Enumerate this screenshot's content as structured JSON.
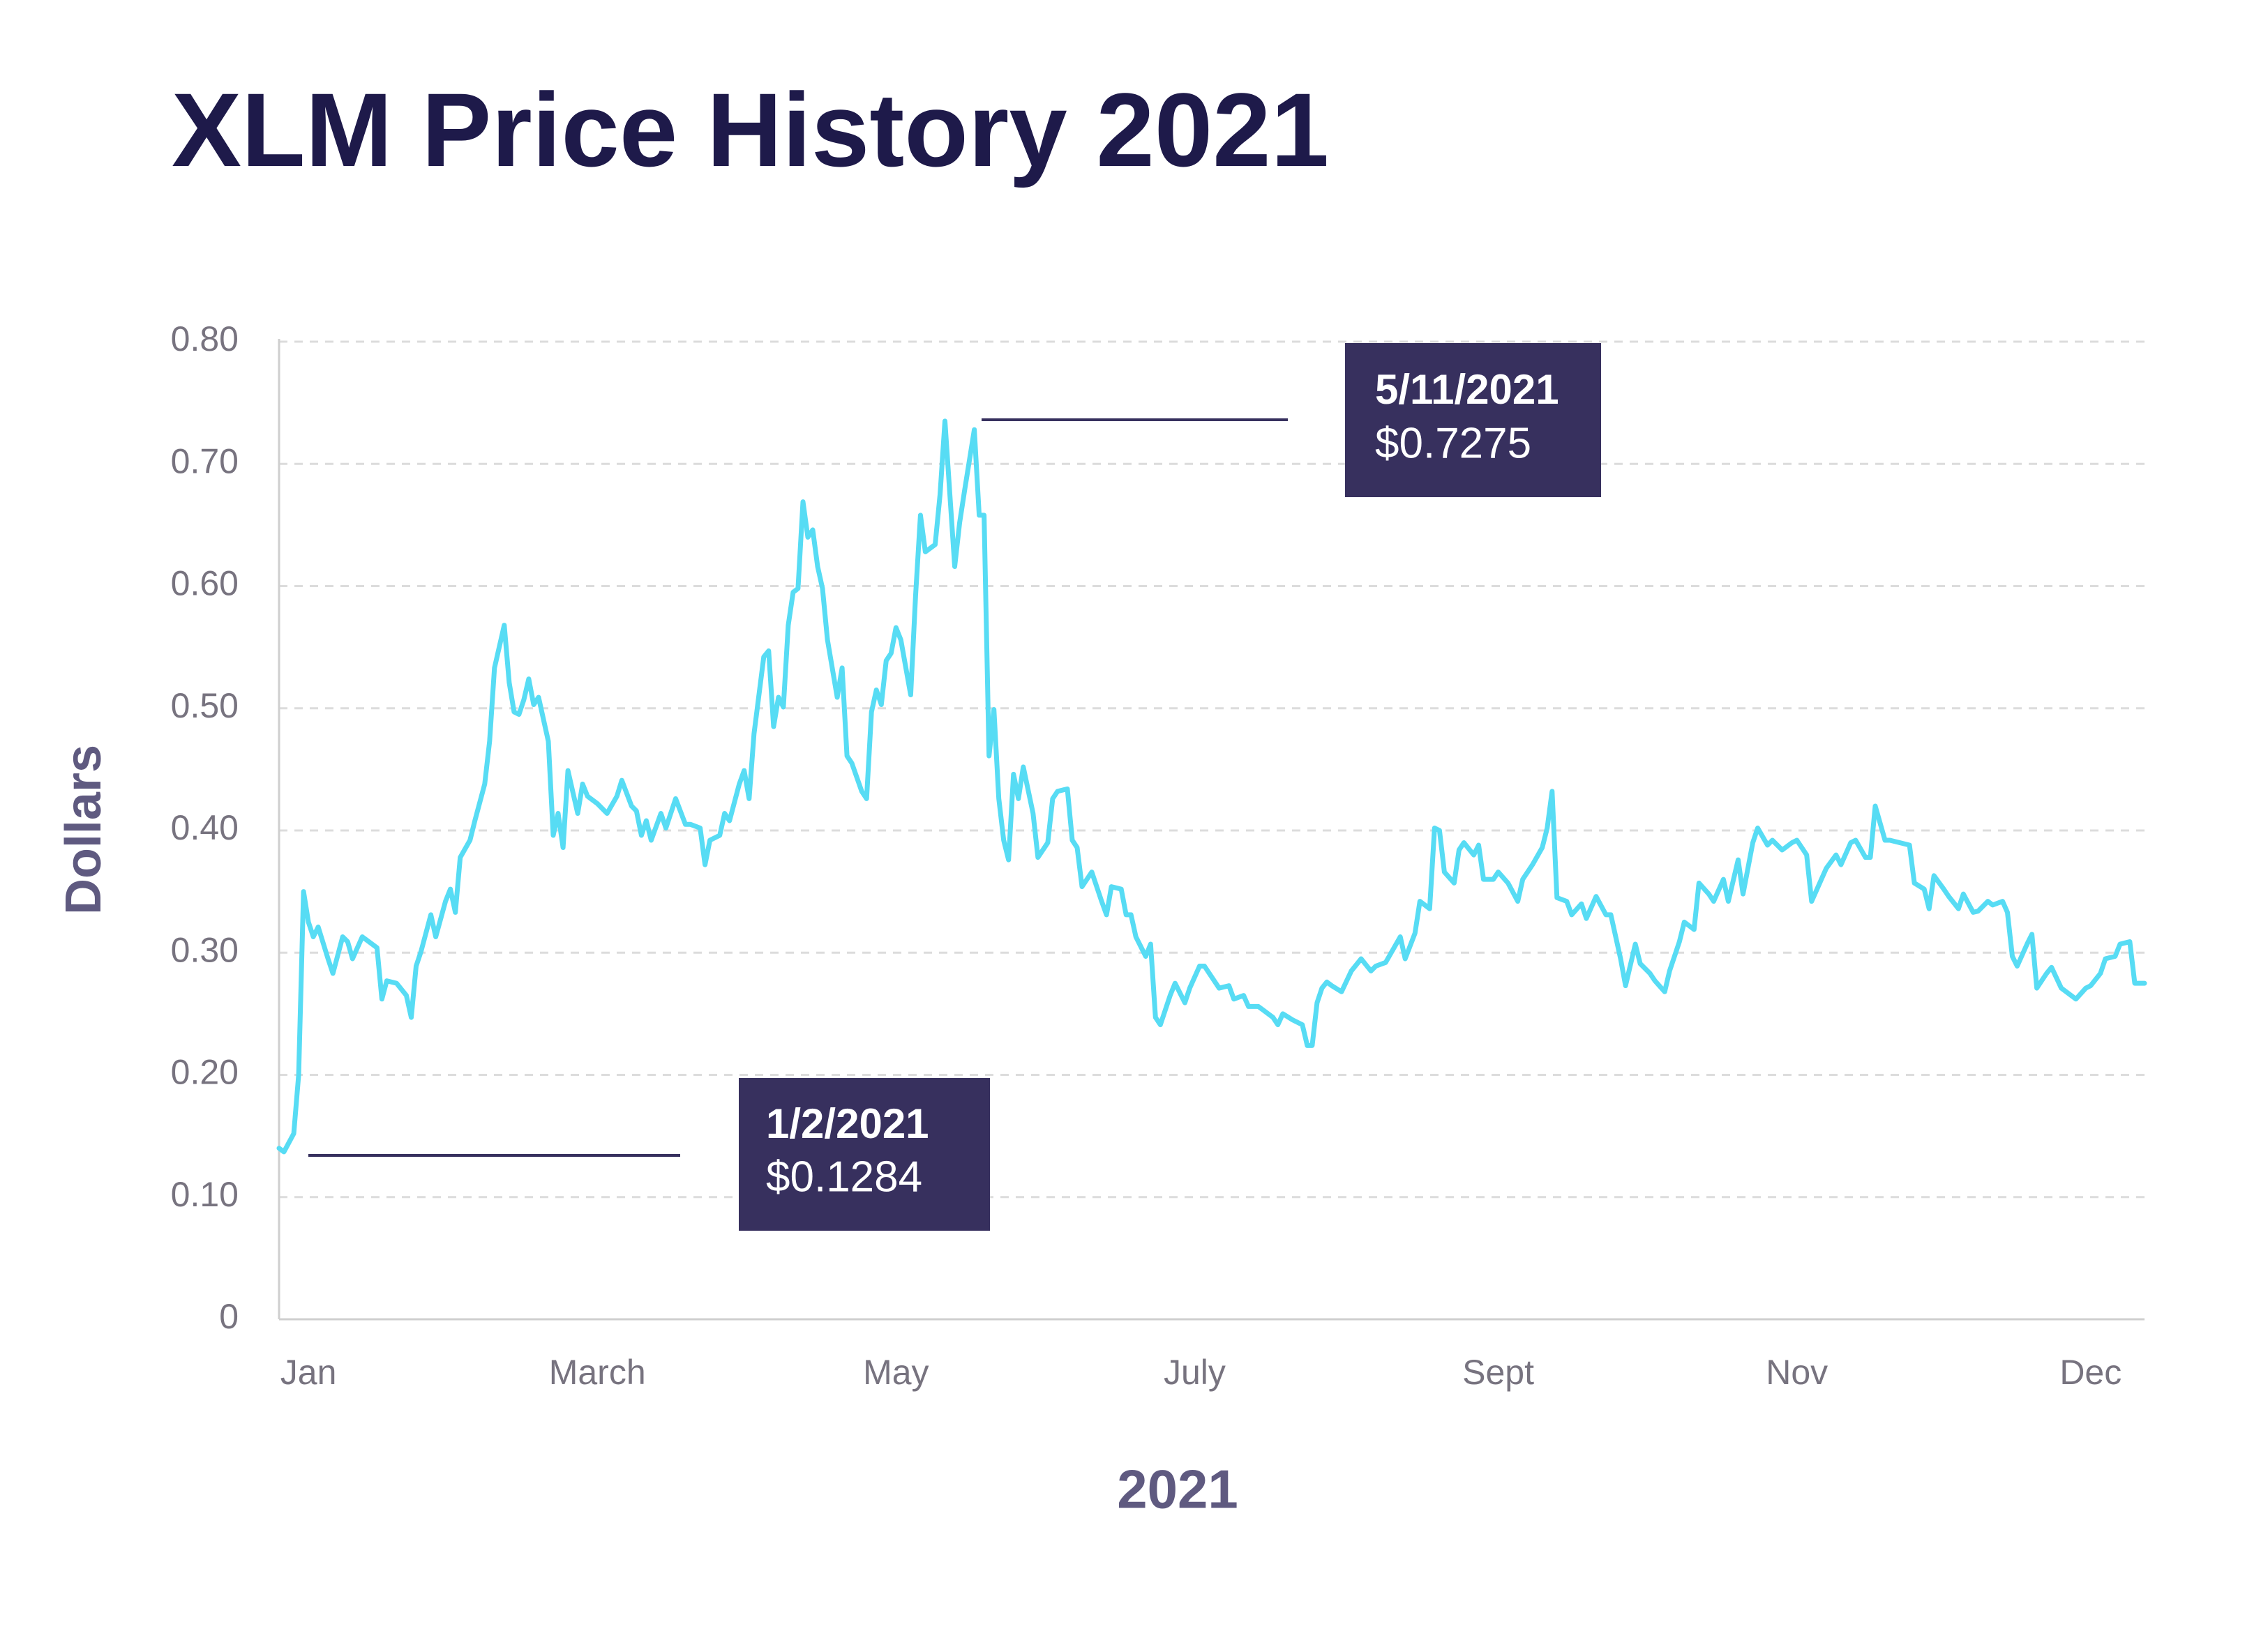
{
  "chart_data": {
    "type": "line",
    "title": "XLM Price History 2021",
    "x_label": "2021",
    "y_label": "Dollars",
    "xlim": [
      -5,
      376
    ],
    "xticks": [
      {
        "value": 1,
        "label": "Jan"
      },
      {
        "value": 60,
        "label": "March"
      },
      {
        "value": 121,
        "label": "May"
      },
      {
        "value": 182,
        "label": "July"
      },
      {
        "value": 244,
        "label": "Sept"
      },
      {
        "value": 305,
        "label": "Nov"
      },
      {
        "value": 365,
        "label": "Dec"
      }
    ],
    "ylim": [
      0,
      0.8
    ],
    "yticks": [
      0,
      {
        "value": 0.1,
        "label": "0.10"
      },
      {
        "value": 0.2,
        "label": "0.20"
      },
      {
        "value": 0.3,
        "label": "0.30"
      },
      {
        "value": 0.4,
        "label": "0.40"
      },
      {
        "value": 0.5,
        "label": "0.50"
      },
      {
        "value": 0.6,
        "label": "0.60"
      },
      {
        "value": 0.7,
        "label": "0.70"
      },
      {
        "value": 0.8,
        "label": "0.80"
      }
    ],
    "grid": true,
    "color": "#57dcf4",
    "x": [
      -5,
      -4,
      -2,
      -1,
      0,
      1,
      2,
      3,
      5,
      6,
      8,
      9,
      10,
      12,
      13,
      15,
      16,
      17,
      19,
      21,
      22,
      23,
      24,
      26,
      27,
      29,
      30,
      31,
      32,
      34,
      35,
      37,
      38,
      39,
      41,
      42,
      43,
      44,
      45,
      46,
      47,
      48,
      50,
      51,
      52,
      53,
      54,
      56,
      57,
      58,
      60,
      62,
      64,
      65,
      67,
      68,
      69,
      70,
      71,
      73,
      74,
      76,
      78,
      79,
      81,
      82,
      83,
      85,
      86,
      87,
      89,
      90,
      91,
      92,
      94,
      95,
      96,
      97,
      98,
      99,
      100,
      101,
      102,
      103,
      104,
      105,
      106,
      107,
      109,
      110,
      111,
      112,
      114,
      115,
      116,
      117,
      118,
      119,
      120,
      121,
      122,
      124,
      125,
      126,
      127,
      129,
      130,
      131,
      133,
      134,
      135,
      137,
      138,
      139,
      140,
      141,
      142,
      143,
      144,
      145,
      146,
      147,
      149,
      150,
      152,
      153,
      154,
      156,
      157,
      158,
      159,
      161,
      163,
      164,
      165,
      167,
      168,
      169,
      170,
      172,
      173,
      174,
      175,
      177,
      178,
      180,
      181,
      183,
      184,
      186,
      187,
      189,
      190,
      192,
      193,
      195,
      196,
      198,
      199,
      200,
      202,
      204,
      205,
      206,
      207,
      208,
      209,
      210,
      212,
      214,
      216,
      218,
      219,
      221,
      224,
      225,
      227,
      228,
      230,
      231,
      232,
      233,
      235,
      236,
      237,
      239,
      240,
      241,
      243,
      244,
      246,
      248,
      249,
      251,
      253,
      254,
      255,
      256,
      258,
      259,
      261,
      262,
      264,
      266,
      267,
      269,
      270,
      272,
      273,
      275,
      276,
      278,
      279,
      281,
      282,
      284,
      285,
      287,
      288,
      290,
      291,
      293,
      294,
      296,
      297,
      299,
      300,
      302,
      304,
      305,
      307,
      308,
      310,
      311,
      313,
      314,
      316,
      317,
      319,
      320,
      321,
      323,
      324,
      326,
      328,
      329,
      331,
      332,
      333,
      335,
      336,
      338,
      339,
      341,
      342,
      344,
      345,
      347,
      348,
      349,
      350,
      352,
      353,
      354,
      356,
      357,
      359,
      361,
      362,
      364,
      365,
      367,
      368,
      370,
      371,
      373,
      374,
      376
    ],
    "values": [
      0.14,
      0.137,
      0.152,
      0.2,
      0.35,
      0.325,
      0.313,
      0.321,
      0.295,
      0.283,
      0.313,
      0.309,
      0.295,
      0.313,
      0.31,
      0.304,
      0.262,
      0.277,
      0.275,
      0.265,
      0.247,
      0.289,
      0.301,
      0.331,
      0.313,
      0.342,
      0.352,
      0.333,
      0.378,
      0.392,
      0.408,
      0.438,
      0.473,
      0.533,
      0.568,
      0.521,
      0.497,
      0.495,
      0.507,
      0.524,
      0.503,
      0.509,
      0.473,
      0.396,
      0.414,
      0.386,
      0.449,
      0.414,
      0.438,
      0.428,
      0.422,
      0.414,
      0.428,
      0.441,
      0.42,
      0.416,
      0.396,
      0.408,
      0.392,
      0.414,
      0.402,
      0.426,
      0.405,
      0.405,
      0.402,
      0.372,
      0.392,
      0.396,
      0.414,
      0.408,
      0.438,
      0.449,
      0.426,
      0.479,
      0.542,
      0.547,
      0.485,
      0.509,
      0.501,
      0.568,
      0.595,
      0.598,
      0.669,
      0.64,
      0.646,
      0.616,
      0.598,
      0.556,
      0.509,
      0.533,
      0.461,
      0.455,
      0.432,
      0.426,
      0.497,
      0.515,
      0.503,
      0.539,
      0.545,
      0.566,
      0.556,
      0.511,
      0.592,
      0.658,
      0.628,
      0.634,
      0.675,
      0.735,
      0.616,
      0.652,
      0.678,
      0.728,
      0.658,
      0.658,
      0.461,
      0.499,
      0.426,
      0.392,
      0.376,
      0.446,
      0.426,
      0.452,
      0.414,
      0.378,
      0.39,
      0.426,
      0.432,
      0.434,
      0.392,
      0.386,
      0.354,
      0.366,
      0.342,
      0.331,
      0.354,
      0.352,
      0.331,
      0.331,
      0.313,
      0.297,
      0.307,
      0.247,
      0.241,
      0.265,
      0.275,
      0.259,
      0.271,
      0.289,
      0.289,
      0.277,
      0.271,
      0.273,
      0.262,
      0.265,
      0.256,
      0.256,
      0.253,
      0.247,
      0.241,
      0.25,
      0.245,
      0.241,
      0.224,
      0.224,
      0.259,
      0.271,
      0.276,
      0.273,
      0.268,
      0.285,
      0.295,
      0.285,
      0.289,
      0.292,
      0.313,
      0.295,
      0.316,
      0.342,
      0.336,
      0.402,
      0.4,
      0.366,
      0.357,
      0.384,
      0.39,
      0.38,
      0.388,
      0.36,
      0.36,
      0.366,
      0.357,
      0.342,
      0.36,
      0.372,
      0.386,
      0.402,
      0.432,
      0.345,
      0.342,
      0.331,
      0.34,
      0.328,
      0.346,
      0.331,
      0.331,
      0.295,
      0.273,
      0.307,
      0.291,
      0.283,
      0.277,
      0.268,
      0.285,
      0.309,
      0.325,
      0.319,
      0.357,
      0.348,
      0.342,
      0.36,
      0.342,
      0.376,
      0.348,
      0.39,
      0.402,
      0.388,
      0.392,
      0.384,
      0.39,
      0.392,
      0.38,
      0.342,
      0.36,
      0.369,
      0.38,
      0.372,
      0.39,
      0.392,
      0.378,
      0.378,
      0.42,
      0.392,
      0.392,
      0.39,
      0.388,
      0.357,
      0.352,
      0.336,
      0.363,
      0.352,
      0.346,
      0.336,
      0.348,
      0.333,
      0.334,
      0.342,
      0.339,
      0.342,
      0.333,
      0.297,
      0.289,
      0.307,
      0.315,
      0.271,
      0.283,
      0.288,
      0.271,
      0.265,
      0.262,
      0.271,
      0.273,
      0.283,
      0.295,
      0.297,
      0.307,
      0.309,
      0.275,
      0.275
    ],
    "annotations": [
      {
        "date": "1/2/2021",
        "price": "$0.1284"
      },
      {
        "date": "5/11/2021",
        "price": "$0.7275"
      }
    ]
  }
}
